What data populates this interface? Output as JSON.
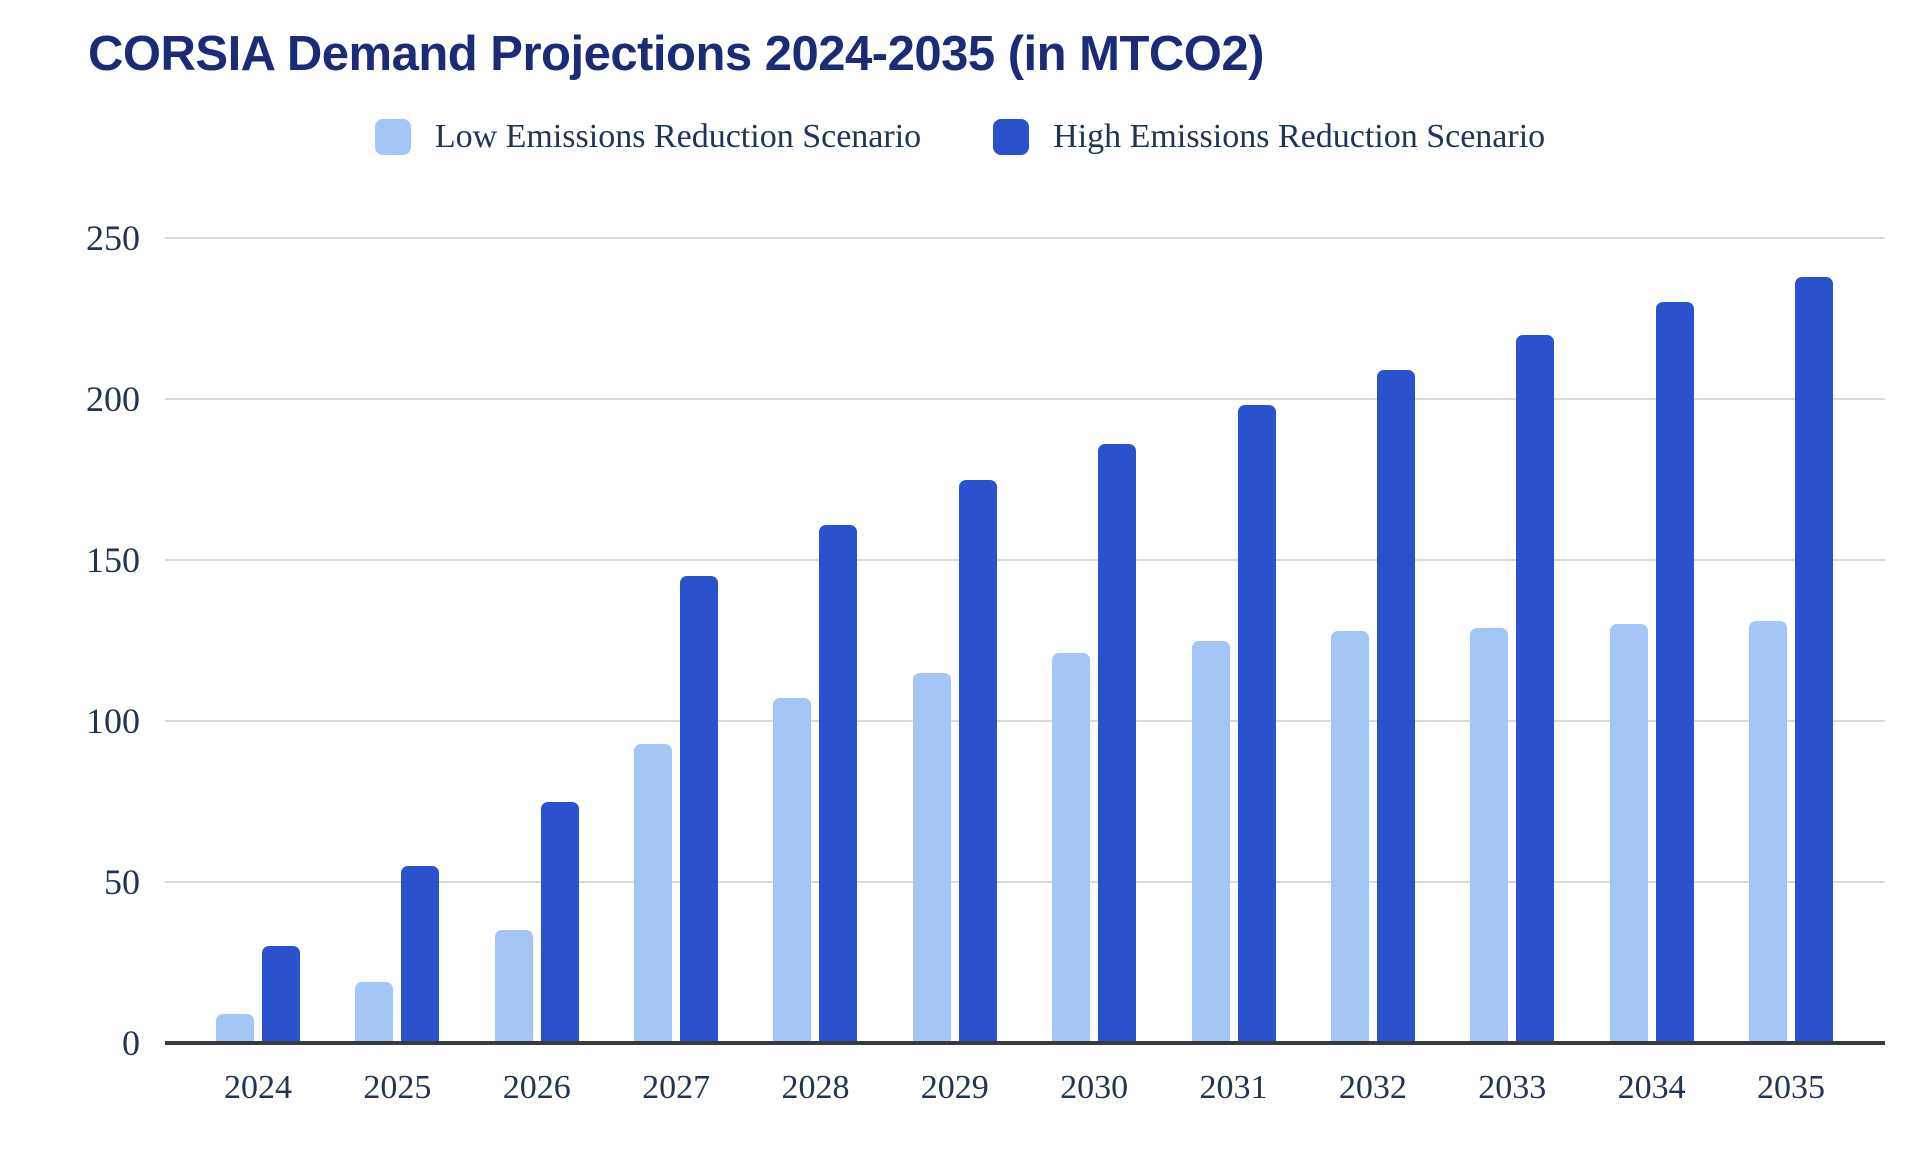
{
  "title": "CORSIA Demand Projections 2024-2035 (in MTCO2)",
  "legend": {
    "items": [
      {
        "label": "Low Emissions Reduction Scenario",
        "color": "#a3c6f6"
      },
      {
        "label": "High Emissions Reduction Scenario",
        "color": "#2b52ce"
      }
    ]
  },
  "colors": {
    "title": "#1c2b75",
    "axis_text": "#203454",
    "gridline": "#d9d9d9",
    "axis_line": "#3a3a3a",
    "low_series": "#a3c6f6",
    "high_series": "#2b52ce"
  },
  "chart_data": {
    "type": "bar",
    "title": "CORSIA Demand Projections 2024-2035 (in MTCO2)",
    "categories": [
      "2024",
      "2025",
      "2026",
      "2027",
      "2028",
      "2029",
      "2030",
      "2031",
      "2032",
      "2033",
      "2034",
      "2035"
    ],
    "series": [
      {
        "name": "Low Emissions Reduction Scenario",
        "color": "#a3c6f6",
        "values": [
          9,
          19,
          35,
          93,
          107,
          115,
          121,
          125,
          128,
          129,
          130,
          131
        ]
      },
      {
        "name": "High Emissions Reduction Scenario",
        "color": "#2b52ce",
        "values": [
          30,
          55,
          75,
          145,
          161,
          175,
          186,
          198,
          209,
          220,
          230,
          238
        ]
      }
    ],
    "xlabel": "",
    "ylabel": "",
    "ylim": [
      0,
      250
    ],
    "yticks": [
      0,
      50,
      100,
      150,
      200,
      250
    ],
    "grid": true,
    "legend_position": "top"
  }
}
